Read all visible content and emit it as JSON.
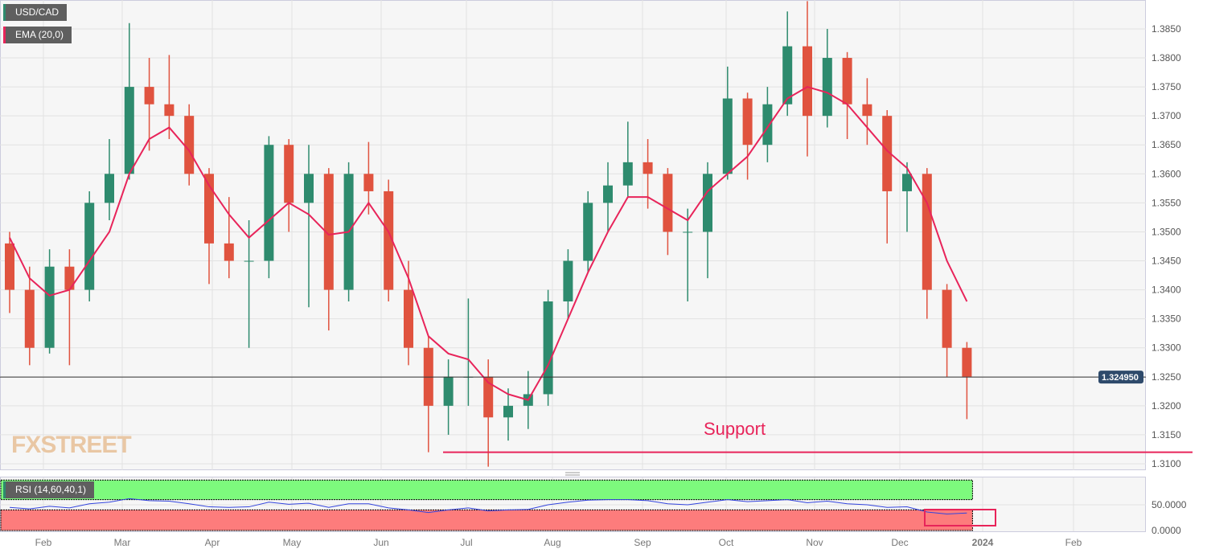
{
  "chart_data": {
    "type": "candlestick",
    "symbol": "USD/CAD",
    "indicator": "EMA (20,0)",
    "rsi_label": "RSI (14,60,40,1)",
    "annotation": "Support",
    "support_level": 1.312,
    "current_price": 1.32495,
    "current_price_label": "1.324950",
    "ylim": [
      1.308,
      1.3895
    ],
    "y_ticks": [
      "1.3100",
      "1.3150",
      "1.3200",
      "1.3250",
      "1.3300",
      "1.3350",
      "1.3400",
      "1.3450",
      "1.3500",
      "1.3550",
      "1.3600",
      "1.3650",
      "1.3700",
      "1.3750",
      "1.3800",
      "1.3850"
    ],
    "rsi_ticks": [
      "50.0000",
      "0.0000"
    ],
    "rsi_bands": {
      "upper": 60,
      "lower": 40
    },
    "x_ticks": [
      "Feb",
      "Mar",
      "Apr",
      "May",
      "Jun",
      "Jul",
      "Aug",
      "Sep",
      "Oct",
      "Nov",
      "Dec",
      "2024",
      "Feb"
    ],
    "watermark": "FXSTREET",
    "colors": {
      "up": "#2e8b6e",
      "down": "#e0533f",
      "ema": "#e8245a",
      "support": "#e8245a",
      "rsi": "#3344dd",
      "rsi_up_band": "#7dfa7d",
      "rsi_down_band": "#fd7c7c",
      "price_tag": "#2e4a6b"
    },
    "ohlc": [
      [
        1.348,
        1.35,
        1.336,
        1.34
      ],
      [
        1.34,
        1.344,
        1.327,
        1.33
      ],
      [
        1.33,
        1.347,
        1.329,
        1.344
      ],
      [
        1.344,
        1.347,
        1.327,
        1.34
      ],
      [
        1.34,
        1.357,
        1.338,
        1.355
      ],
      [
        1.355,
        1.366,
        1.352,
        1.36
      ],
      [
        1.36,
        1.386,
        1.359,
        1.375
      ],
      [
        1.375,
        1.38,
        1.364,
        1.372
      ],
      [
        1.372,
        1.3805,
        1.366,
        1.37
      ],
      [
        1.37,
        1.372,
        1.358,
        1.36
      ],
      [
        1.36,
        1.361,
        1.341,
        1.348
      ],
      [
        1.348,
        1.356,
        1.342,
        1.345
      ],
      [
        1.345,
        1.352,
        1.33,
        1.345
      ],
      [
        1.345,
        1.3665,
        1.342,
        1.365
      ],
      [
        1.365,
        1.366,
        1.35,
        1.355
      ],
      [
        1.355,
        1.365,
        1.337,
        1.36
      ],
      [
        1.36,
        1.361,
        1.333,
        1.34
      ],
      [
        1.34,
        1.362,
        1.338,
        1.36
      ],
      [
        1.36,
        1.3655,
        1.353,
        1.357
      ],
      [
        1.357,
        1.359,
        1.338,
        1.34
      ],
      [
        1.34,
        1.345,
        1.327,
        1.33
      ],
      [
        1.33,
        1.332,
        1.312,
        1.32
      ],
      [
        1.32,
        1.328,
        1.315,
        1.325
      ],
      [
        1.325,
        1.3385,
        1.32,
        1.325
      ],
      [
        1.325,
        1.328,
        1.3095,
        1.318
      ],
      [
        1.318,
        1.323,
        1.314,
        1.32
      ],
      [
        1.32,
        1.326,
        1.316,
        1.322
      ],
      [
        1.322,
        1.34,
        1.32,
        1.338
      ],
      [
        1.338,
        1.347,
        1.335,
        1.345
      ],
      [
        1.345,
        1.357,
        1.343,
        1.355
      ],
      [
        1.355,
        1.362,
        1.35,
        1.358
      ],
      [
        1.358,
        1.369,
        1.356,
        1.362
      ],
      [
        1.362,
        1.366,
        1.354,
        1.36
      ],
      [
        1.36,
        1.361,
        1.346,
        1.35
      ],
      [
        1.35,
        1.354,
        1.338,
        1.35
      ],
      [
        1.35,
        1.362,
        1.342,
        1.36
      ],
      [
        1.36,
        1.3785,
        1.359,
        1.373
      ],
      [
        1.373,
        1.374,
        1.359,
        1.365
      ],
      [
        1.365,
        1.375,
        1.362,
        1.372
      ],
      [
        1.372,
        1.388,
        1.37,
        1.382
      ],
      [
        1.382,
        1.3898,
        1.363,
        1.37
      ],
      [
        1.37,
        1.385,
        1.368,
        1.38
      ],
      [
        1.38,
        1.381,
        1.366,
        1.372
      ],
      [
        1.372,
        1.3765,
        1.365,
        1.37
      ],
      [
        1.37,
        1.371,
        1.348,
        1.357
      ],
      [
        1.357,
        1.362,
        1.35,
        1.36
      ],
      [
        1.36,
        1.361,
        1.335,
        1.34
      ],
      [
        1.34,
        1.341,
        1.325,
        1.33
      ],
      [
        1.33,
        1.331,
        1.3177,
        1.325
      ]
    ],
    "ema": [
      1.349,
      1.342,
      1.339,
      1.34,
      1.345,
      1.35,
      1.36,
      1.366,
      1.368,
      1.364,
      1.358,
      1.353,
      1.349,
      1.352,
      1.355,
      1.353,
      1.3495,
      1.35,
      1.355,
      1.35,
      1.342,
      1.332,
      1.329,
      1.328,
      1.324,
      1.322,
      1.321,
      1.327,
      1.335,
      1.343,
      1.35,
      1.356,
      1.356,
      1.354,
      1.352,
      1.357,
      1.36,
      1.363,
      1.368,
      1.373,
      1.375,
      1.374,
      1.372,
      1.368,
      1.364,
      1.361,
      1.355,
      1.345,
      1.338
    ],
    "rsi": [
      45,
      42,
      47,
      44,
      52,
      55,
      62,
      58,
      57,
      52,
      46,
      45,
      46,
      55,
      51,
      53,
      45,
      52,
      52,
      44,
      40,
      35,
      40,
      44,
      38,
      40,
      41,
      50,
      55,
      59,
      60,
      60,
      58,
      52,
      50,
      55,
      60,
      56,
      58,
      60,
      54,
      57,
      52,
      50,
      45,
      46,
      36,
      32,
      34
    ]
  }
}
